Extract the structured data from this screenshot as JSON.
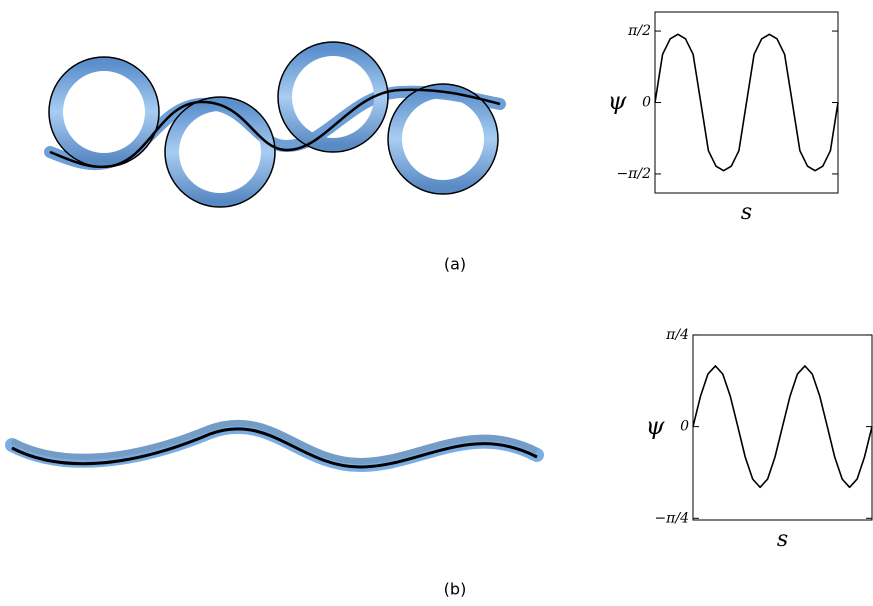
{
  "chart_data": [
    {
      "type": "line",
      "ylabel": "ψ",
      "xlabel": "s",
      "x": [
        0,
        0.0417,
        0.0833,
        0.125,
        0.1667,
        0.2083,
        0.25,
        0.2917,
        0.3333,
        0.375,
        0.4167,
        0.4583,
        0.5,
        0.5417,
        0.5833,
        0.625,
        0.6667,
        0.7083,
        0.75,
        0.7917,
        0.8333,
        0.875,
        0.9167,
        0.9583,
        1
      ],
      "series": [
        {
          "color": "#000000",
          "values": [
            0,
            1.06,
            1.4,
            1.5,
            1.4,
            1.06,
            0,
            -1.06,
            -1.4,
            -1.5,
            -1.4,
            -1.06,
            0,
            1.06,
            1.4,
            1.5,
            1.4,
            1.06,
            0,
            -1.06,
            -1.4,
            -1.5,
            -1.4,
            -1.06,
            0
          ]
        }
      ],
      "xlim": [
        0,
        1
      ],
      "ylim": [
        -1.99,
        1.99
      ],
      "yticks": [
        {
          "value": 1.5708,
          "label": "π/2"
        },
        0,
        {
          "value": -1.5708,
          "label": "−π/2"
        }
      ]
    },
    {
      "type": "line",
      "ylabel": "ψ",
      "xlabel": "s",
      "x": [
        0,
        0.0417,
        0.0833,
        0.125,
        0.1667,
        0.2083,
        0.25,
        0.2917,
        0.3333,
        0.375,
        0.4167,
        0.4583,
        0.5,
        0.5417,
        0.5833,
        0.625,
        0.6667,
        0.7083,
        0.75,
        0.7917,
        0.8333,
        0.875,
        0.9167,
        0.9583,
        1
      ],
      "series": [
        {
          "color": "#000000",
          "values": [
            0,
            0.26,
            0.45,
            0.52,
            0.45,
            0.26,
            0,
            -0.26,
            -0.45,
            -0.52,
            -0.45,
            -0.26,
            0,
            0.26,
            0.45,
            0.52,
            0.45,
            0.26,
            0,
            -0.26,
            -0.45,
            -0.52,
            -0.45,
            -0.26,
            0
          ]
        }
      ],
      "xlim": [
        0,
        1
      ],
      "ylim": [
        -0.8,
        0.785
      ],
      "yticks": [
        {
          "value": 0.7854,
          "label": "π/4"
        },
        0,
        {
          "value": -0.7854,
          "label": "−π/4"
        }
      ]
    }
  ],
  "captions": [
    "(a)",
    "(b)"
  ]
}
